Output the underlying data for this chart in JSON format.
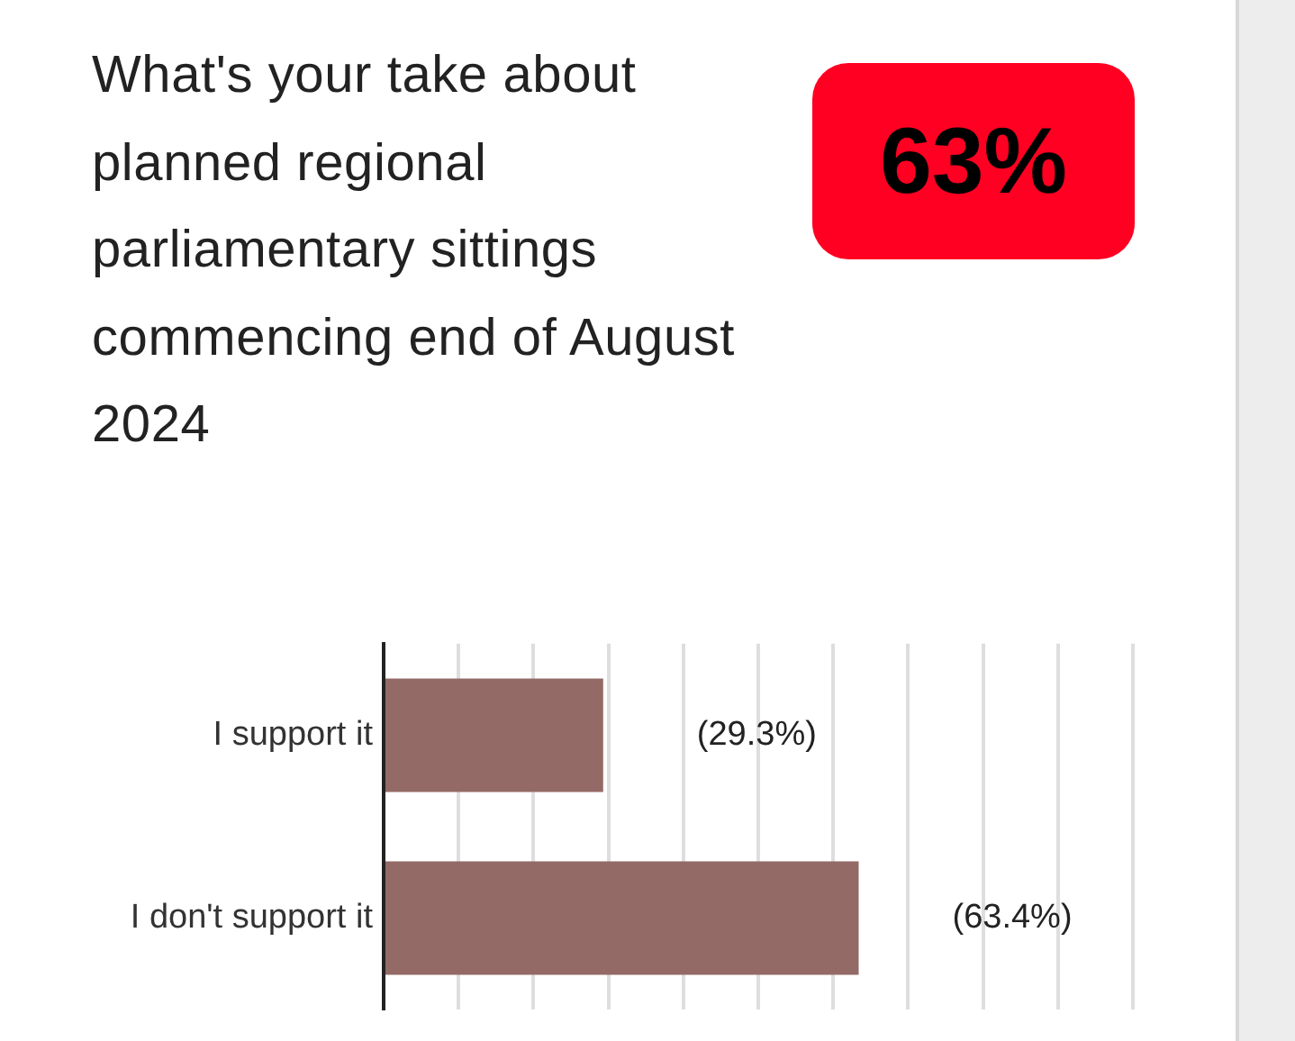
{
  "chart_data": {
    "type": "bar",
    "orientation": "horizontal",
    "title": "What's your take about planned regional parliamentary sittings commencing end of August 2024",
    "annotations": [
      "63%"
    ],
    "categories": [
      "I support it",
      "I don't support it"
    ],
    "values": [
      29.3,
      63.4
    ],
    "value_labels": [
      "(29.3%)",
      "(63.4%)"
    ],
    "color": "#946a66",
    "xlim": [
      0,
      100
    ],
    "tick_labels": "y",
    "grid": "x",
    "legend": false
  }
}
